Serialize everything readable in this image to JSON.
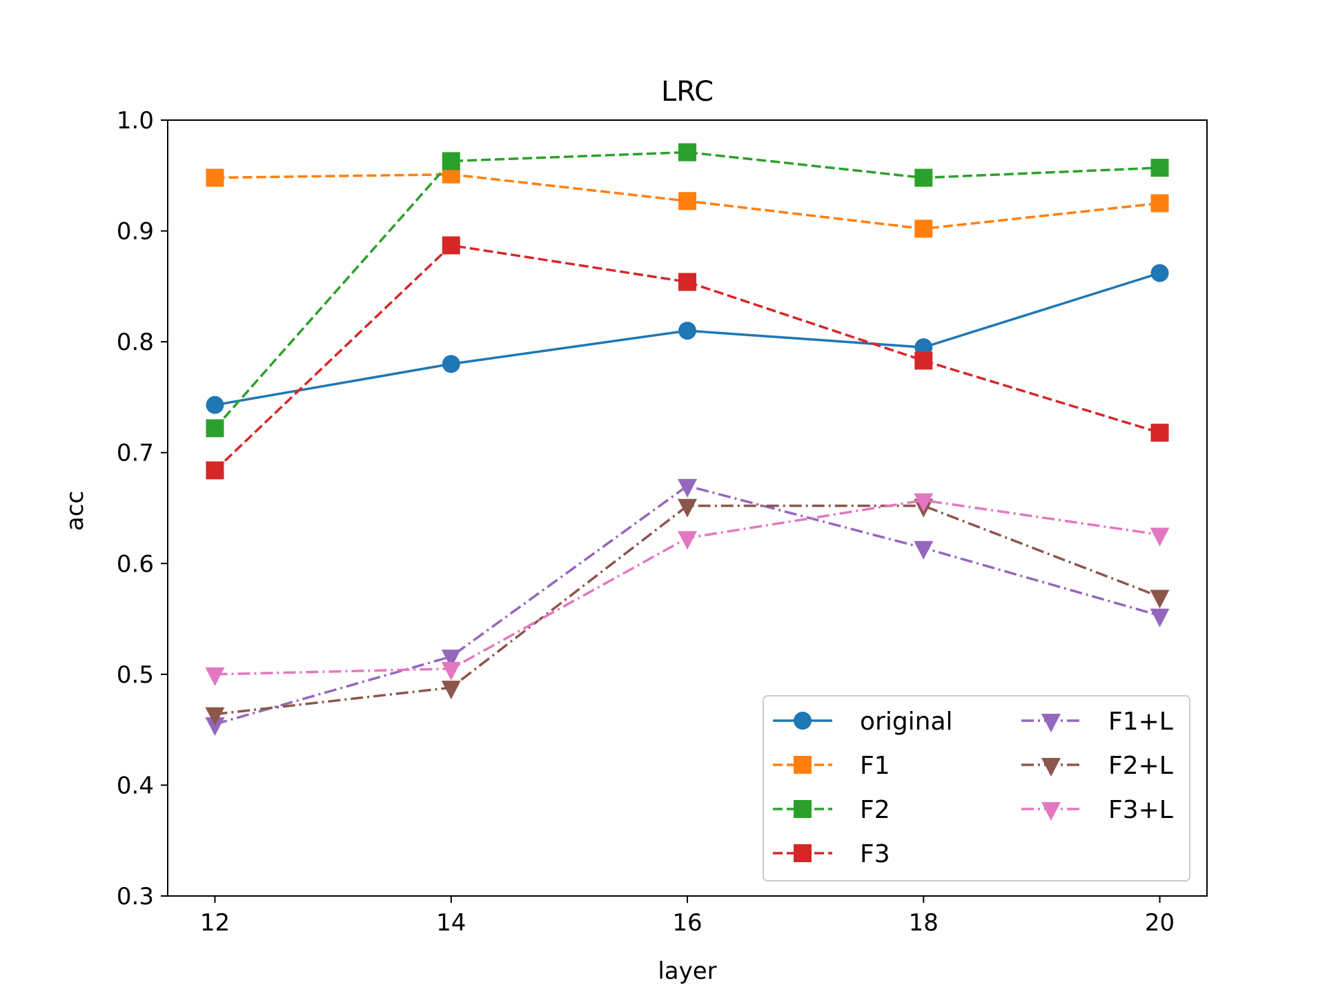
{
  "chart_data": {
    "type": "line",
    "title": "LRC",
    "xlabel": "layer",
    "ylabel": "acc",
    "x": [
      12,
      14,
      16,
      18,
      20
    ],
    "xticks": [
      "12",
      "14",
      "16",
      "18",
      "20"
    ],
    "yticks": [
      "0.3",
      "0.4",
      "0.5",
      "0.6",
      "0.7",
      "0.8",
      "0.9",
      "1.0"
    ],
    "xlim": [
      11.6,
      20.4
    ],
    "ylim": [
      0.3,
      1.0
    ],
    "grid": false,
    "legend_position": "lower-right",
    "legend_columns": 2,
    "series": [
      {
        "name": "original",
        "values": [
          0.743,
          0.78,
          0.81,
          0.795,
          0.862
        ],
        "color": "#1f77b4",
        "linestyle": "solid",
        "marker": "circle"
      },
      {
        "name": "F1",
        "values": [
          0.948,
          0.951,
          0.927,
          0.902,
          0.925
        ],
        "color": "#ff7f0e",
        "linestyle": "dashed",
        "marker": "square"
      },
      {
        "name": "F2",
        "values": [
          0.722,
          0.963,
          0.971,
          0.948,
          0.957
        ],
        "color": "#2ca02c",
        "linestyle": "dashed",
        "marker": "square"
      },
      {
        "name": "F3",
        "values": [
          0.684,
          0.887,
          0.854,
          0.783,
          0.718
        ],
        "color": "#d62728",
        "linestyle": "dashed",
        "marker": "square"
      },
      {
        "name": "F1+L",
        "values": [
          0.455,
          0.516,
          0.67,
          0.614,
          0.553
        ],
        "color": "#9467bd",
        "linestyle": "dashdot",
        "marker": "triangle-down"
      },
      {
        "name": "F2+L",
        "values": [
          0.464,
          0.488,
          0.652,
          0.652,
          0.57
        ],
        "color": "#8c564b",
        "linestyle": "dashdot",
        "marker": "triangle-down"
      },
      {
        "name": "F3+L",
        "values": [
          0.5,
          0.505,
          0.623,
          0.657,
          0.626
        ],
        "color": "#e377c2",
        "linestyle": "dashdot",
        "marker": "triangle-down"
      }
    ]
  }
}
